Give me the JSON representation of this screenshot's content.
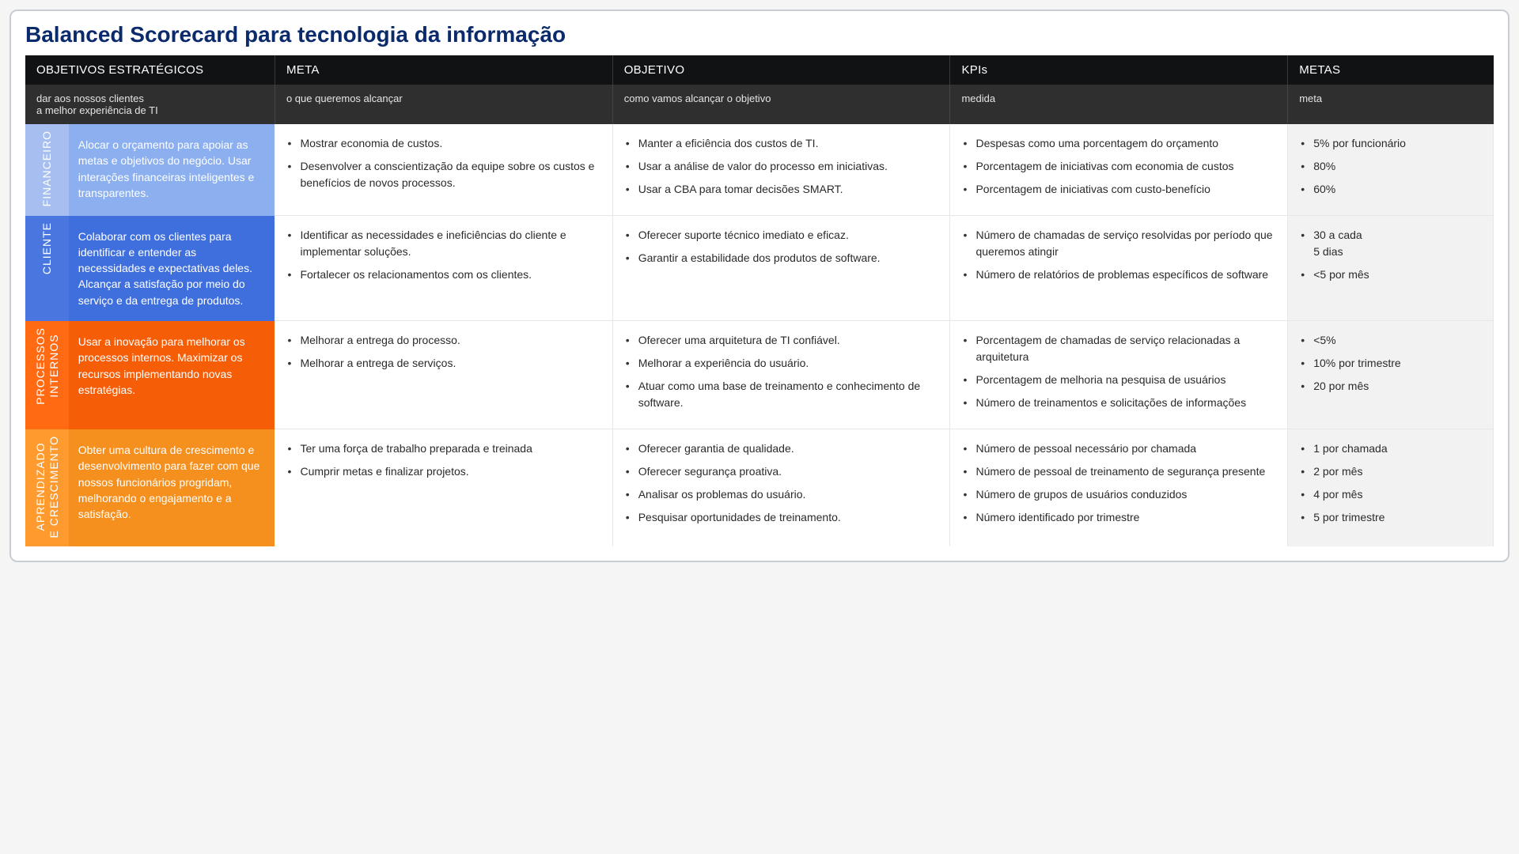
{
  "title": "Balanced Scorecard para tecnologia da informação",
  "colors": {
    "title": "#0a2a6b",
    "header_bg": "#111214",
    "subheader_bg": "#2f2f30",
    "border": "#c8cdd3",
    "metas_bg": "#f2f2f2"
  },
  "headers": {
    "col1": "OBJETIVOS ESTRATÉGICOS",
    "col2": "META",
    "col3": "OBJETIVO",
    "col4": "KPIs",
    "col5": "METAS",
    "sub1": "dar aos nossos clientes\na melhor experiência de TI",
    "sub2": "o que queremos alcançar",
    "sub3": "como vamos alcançar o objetivo",
    "sub4": "medida",
    "sub5": "meta"
  },
  "perspectives": [
    {
      "id": "financeiro",
      "label": "FINANCEIRO",
      "label_bg": "#a7bff0",
      "desc_bg": "#8bafef",
      "desc": "Alocar o orçamento para apoiar as metas e objetivos do negócio. Usar interações financeiras inteligentes e transparentes.",
      "meta": [
        "Mostrar economia de custos.",
        "Desenvolver a conscientização da equipe sobre os custos e benefícios de novos processos."
      ],
      "objetivo": [
        "Manter a eficiência dos custos de TI.",
        "Usar a análise de valor do processo em iniciativas.",
        "Usar a CBA para tomar decisões SMART."
      ],
      "kpis": [
        "Despesas como uma porcentagem do orçamento",
        "Porcentagem de iniciativas com economia de custos",
        "Porcentagem de iniciativas com custo-benefício"
      ],
      "metas": [
        "5% por funcionário",
        "80%",
        "60%"
      ]
    },
    {
      "id": "cliente",
      "label": "CLIENTE",
      "label_bg": "#4a77df",
      "desc_bg": "#3f6edd",
      "desc": "Colaborar com os clientes para identificar e entender as necessidades e expectativas deles. Alcançar a satisfação por meio do serviço e da entrega de produtos.",
      "meta": [
        "Identificar as necessidades e ineficiências do cliente e implementar soluções.",
        "Fortalecer os relacionamentos com os clientes."
      ],
      "objetivo": [
        "Oferecer suporte técnico imediato e eficaz.",
        "Garantir a estabilidade dos produtos de software."
      ],
      "kpis": [
        "Número de chamadas de serviço resolvidas por período que queremos atingir",
        "Número de relatórios de problemas específicos de software"
      ],
      "metas": [
        "30 a cada\n5 dias",
        "<5 por mês"
      ]
    },
    {
      "id": "processos",
      "label": "PROCESSOS\nINTERNOS",
      "label_bg": "#ff6a13",
      "desc_bg": "#f65d07",
      "desc": "Usar a inovação para melhorar os processos internos. Maximizar os recursos implementando novas estratégias.",
      "meta": [
        "Melhorar a entrega do processo.",
        "Melhorar a entrega de serviços."
      ],
      "objetivo": [
        "Oferecer uma arquitetura de TI confiável.",
        "Melhorar a experiência do usuário.",
        "Atuar como uma base de treinamento e conhecimento de software."
      ],
      "kpis": [
        "Porcentagem de chamadas de serviço relacionadas a arquitetura",
        "Porcentagem de melhoria na pesquisa de usuários",
        "Número de treinamentos e solicitações de informações"
      ],
      "metas": [
        "<5%",
        "10% por trimestre",
        "20 por mês"
      ]
    },
    {
      "id": "aprendizado",
      "label": "APRENDIZADO\nE CRESCIMENTO",
      "label_bg": "#ff9a2e",
      "desc_bg": "#f58f1e",
      "desc": "Obter uma cultura de crescimento e desenvolvimento para fazer com que nossos funcionários progridam, melhorando o engajamento e a satisfação.",
      "meta": [
        "Ter uma força de trabalho preparada e treinada",
        "Cumprir metas e finalizar projetos."
      ],
      "objetivo": [
        "Oferecer garantia de qualidade.",
        "Oferecer segurança proativa.",
        "Analisar os problemas do usuário.",
        "Pesquisar oportunidades de treinamento."
      ],
      "kpis": [
        "Número de pessoal necessário por chamada",
        "Número de pessoal de treinamento de segurança presente",
        "Número de grupos de usuários conduzidos",
        "Número identificado por trimestre"
      ],
      "metas": [
        "1 por chamada",
        "2 por mês",
        "4 por mês",
        "5 por trimestre"
      ]
    }
  ]
}
